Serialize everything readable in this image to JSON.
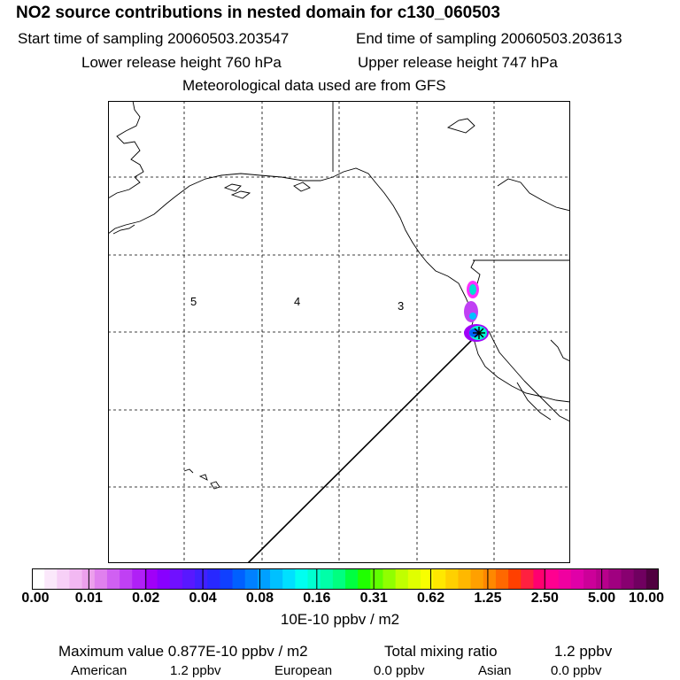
{
  "header": {
    "title": "NO2 source contributions in nested domain for c130_060503",
    "start_sampling": "Start time of sampling 20060503.203547",
    "end_sampling": "End time of sampling 20060503.203613",
    "lower_release": "Lower release height  760 hPa",
    "upper_release": "Upper release height  747 hPa",
    "met_data": "Meteorological data used are from GFS"
  },
  "map": {
    "sector_labels": [
      "5",
      "4",
      "3"
    ]
  },
  "colorbar": {
    "tick_labels": [
      "0.00",
      "0.01",
      "0.02",
      "0.04",
      "0.08",
      "0.16",
      "0.31",
      "0.62",
      "1.25",
      "2.50",
      "5.00",
      "10.00"
    ],
    "units": "10E-10 ppbv / m2",
    "colors": [
      "#ffffff",
      "#fbe8fb",
      "#f7d0f7",
      "#f2b8f2",
      "#eca0ec",
      "#e080ee",
      "#d060f2",
      "#c040f4",
      "#b020f6",
      "#a000f8",
      "#8800ff",
      "#7010ff",
      "#5818ff",
      "#4020ff",
      "#2828ff",
      "#1040ff",
      "#0060ff",
      "#0080ff",
      "#00a0ff",
      "#00c0ff",
      "#00e0ff",
      "#00fff0",
      "#00ffd0",
      "#00ffa8",
      "#00ff80",
      "#00ff40",
      "#20ff00",
      "#60ff00",
      "#90ff00",
      "#c0ff00",
      "#e0ff00",
      "#f8ff00",
      "#ffe800",
      "#ffd000",
      "#ffb800",
      "#ffa000",
      "#ff8800",
      "#ff6800",
      "#ff4000",
      "#ff2040",
      "#ff0070",
      "#ff0090",
      "#f000a0",
      "#e000a8",
      "#cc0099",
      "#b8008c",
      "#a00080",
      "#880070",
      "#700060",
      "#500040"
    ]
  },
  "footer": {
    "max_value": "Maximum value  0.877E-10 ppbv / m2",
    "total_mixing": "Total mixing ratio",
    "total_mixing_value": "1.2 ppbv",
    "american_label": "American",
    "american_value": "1.2 ppbv",
    "european_label": "European",
    "european_value": "0.0 ppbv",
    "asian_label": "Asian",
    "asian_value": "0.0 ppbv"
  }
}
